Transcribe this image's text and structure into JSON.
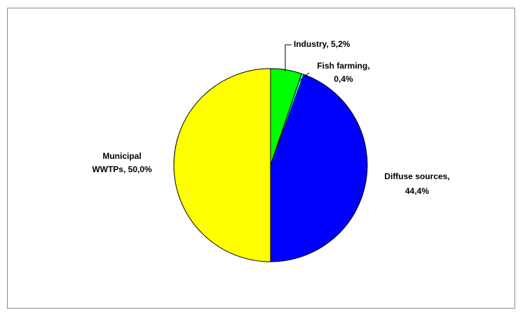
{
  "chart_data": {
    "type": "pie",
    "title": "",
    "slices": [
      {
        "label": "Industry",
        "value": 5.2,
        "value_text": "5,2%",
        "color": "#00ff00"
      },
      {
        "label": "Fish farming",
        "value": 0.4,
        "value_text": "0,4%",
        "color": "#00ffff"
      },
      {
        "label": "Diffuse sources",
        "value": 44.4,
        "value_text": "44,4%",
        "color": "#0000ff"
      },
      {
        "label": "Municipal WWTPs",
        "value": 50.0,
        "value_text": "50,0%",
        "color": "#ffff00"
      }
    ],
    "start_angle": "12 o'clock",
    "direction": "clockwise",
    "legend": "none",
    "data_labels": "outside",
    "texts": {
      "industry": "Industry, 5,2%",
      "fish_1": "Fish farming,",
      "fish_2": "0,4%",
      "diffuse_1": "Diffuse sources,",
      "diffuse_2": "44,4%",
      "muni_1": "Municipal",
      "muni_2": "WWTPs, 50,0%"
    }
  }
}
